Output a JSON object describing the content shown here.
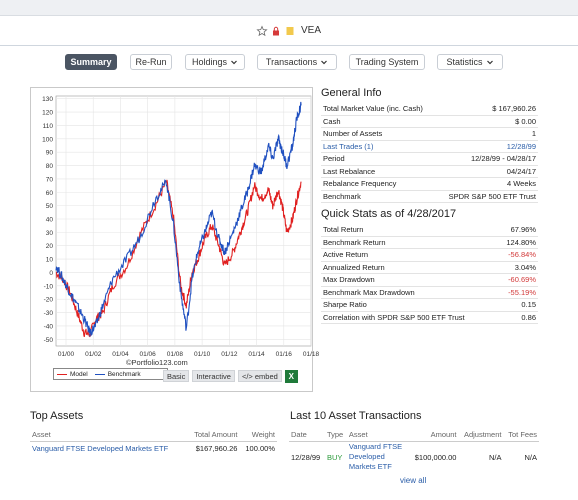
{
  "header": {
    "ticker": "VEA"
  },
  "nav": {
    "summary": "Summary",
    "rerun": "Re-Run",
    "holdings": "Holdings",
    "transactions": "Transactions",
    "trading_system": "Trading System",
    "statistics": "Statistics"
  },
  "chart_data": {
    "type": "line",
    "x_ticks": [
      "01/00",
      "01/02",
      "01/04",
      "01/06",
      "01/08",
      "01/10",
      "01/12",
      "01/14",
      "01/16",
      "01/18"
    ],
    "y_ticks": [
      130,
      120,
      110,
      100,
      90,
      80,
      70,
      60,
      50,
      40,
      30,
      20,
      10,
      0,
      -10,
      -20,
      -30,
      -40,
      -50
    ],
    "ylim": [
      -55,
      132
    ],
    "xlim": [
      2000.0,
      2018.0
    ],
    "series": [
      {
        "name": "Model",
        "color": "#e02020",
        "x": [
          2000.0,
          2000.5,
          2001.0,
          2001.5,
          2002.0,
          2002.4,
          2002.8,
          2003.3,
          2004.0,
          2005.0,
          2006.0,
          2007.0,
          2007.8,
          2008.3,
          2008.8,
          2009.2,
          2009.6,
          2010.0,
          2010.5,
          2011.0,
          2011.5,
          2011.9,
          2012.5,
          2013.0,
          2013.5,
          2014.0,
          2014.5,
          2015.0,
          2015.3,
          2015.7,
          2016.0,
          2016.3,
          2016.7,
          2017.0,
          2017.3
        ],
        "y": [
          0,
          -5,
          -15,
          -30,
          -45,
          -46,
          -35,
          -30,
          -10,
          5,
          30,
          50,
          68,
          40,
          -10,
          -25,
          0,
          10,
          25,
          35,
          20,
          5,
          15,
          30,
          45,
          65,
          55,
          62,
          50,
          62,
          48,
          30,
          40,
          55,
          68
        ]
      },
      {
        "name": "Benchmark",
        "color": "#2050c0",
        "x": [
          2000.0,
          2000.5,
          2001.0,
          2001.5,
          2002.0,
          2002.4,
          2002.8,
          2003.3,
          2004.0,
          2005.0,
          2006.0,
          2007.0,
          2007.8,
          2008.3,
          2008.8,
          2009.2,
          2009.6,
          2010.0,
          2010.5,
          2011.0,
          2011.5,
          2011.9,
          2012.5,
          2013.0,
          2013.5,
          2014.0,
          2014.5,
          2015.0,
          2015.3,
          2015.7,
          2016.0,
          2016.3,
          2016.7,
          2017.0,
          2017.3
        ],
        "y": [
          5,
          -5,
          -15,
          -25,
          -35,
          -45,
          -40,
          -25,
          -5,
          10,
          28,
          55,
          68,
          35,
          -15,
          -42,
          -5,
          15,
          30,
          45,
          25,
          15,
          30,
          45,
          60,
          80,
          75,
          95,
          85,
          100,
          90,
          80,
          95,
          115,
          125
        ]
      }
    ]
  },
  "chart_footer": {
    "legend_model": "Model",
    "legend_benchmark": "Benchmark",
    "credit": "©Portfolio123.com",
    "basic": "Basic",
    "interactive": "Interactive",
    "embed": "</> embed",
    "excel": "X"
  },
  "general_info": {
    "title": "General Info",
    "rows": [
      {
        "label": "Total Market Value (inc. Cash)",
        "value": "$ 167,960.26"
      },
      {
        "label": "Cash",
        "value": "$ 0.00"
      },
      {
        "label": "Number of Assets",
        "value": "1"
      },
      {
        "label": "Last Trades (1)",
        "value": "12/28/99"
      },
      {
        "label": "Period",
        "value": "12/28/99 - 04/28/17"
      },
      {
        "label": "Last Rebalance",
        "value": "04/24/17"
      },
      {
        "label": "Rebalance Frequency",
        "value": "4 Weeks"
      },
      {
        "label": "Benchmark",
        "value": "SPDR S&P 500 ETF Trust"
      }
    ]
  },
  "quick_stats": {
    "title": "Quick Stats as of 4/28/2017",
    "rows": [
      {
        "label": "Total Return",
        "value": "67.96%"
      },
      {
        "label": "Benchmark Return",
        "value": "124.80%"
      },
      {
        "label": "Active Return",
        "value": "-56.84%"
      },
      {
        "label": "Annualized Return",
        "value": "3.04%"
      },
      {
        "label": "Max Drawdown",
        "value": "-60.69%"
      },
      {
        "label": "Benchmark Max Drawdown",
        "value": "-55.19%"
      },
      {
        "label": "Sharpe Ratio",
        "value": "0.15"
      },
      {
        "label": "Correlation with SPDR S&P 500 ETF Trust",
        "value": "0.86"
      }
    ]
  },
  "top_assets": {
    "title": "Top Assets",
    "headers": [
      "Asset",
      "Total Amount",
      "Weight"
    ],
    "rows": [
      {
        "asset": "Vanguard FTSE Developed Markets ETF",
        "amount": "$167,960.26",
        "weight": "100.00%"
      }
    ]
  },
  "transactions": {
    "title": "Last 10 Asset Transactions",
    "headers": [
      "Date",
      "Type",
      "Asset",
      "Amount",
      "Adjustment",
      "Tot Fees"
    ],
    "rows": [
      {
        "date": "12/28/99",
        "type": "BUY",
        "asset_l1": "Vanguard FTSE",
        "asset_l2": "Developed",
        "asset_l3": "Markets ETF",
        "amount": "$100,000.00",
        "adjustment": "N/A",
        "fees": "N/A"
      }
    ],
    "view_all": "view all"
  }
}
